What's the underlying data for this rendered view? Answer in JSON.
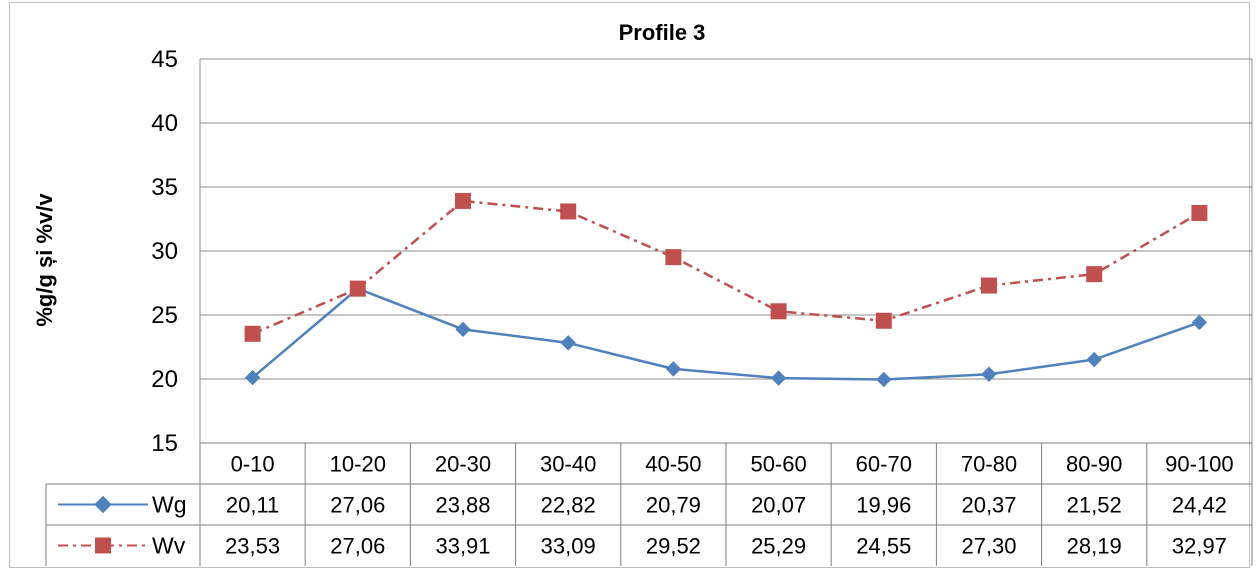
{
  "chart_data": {
    "type": "line",
    "title": "Profile 3",
    "xlabel": "",
    "ylabel": "%g/g și %v/v",
    "ylim": [
      15,
      45
    ],
    "yticks": [
      15,
      20,
      25,
      30,
      35,
      40,
      45
    ],
    "grid": true,
    "legend": "data-table",
    "categories": [
      "0-10",
      "10-20",
      "20-30",
      "30-40",
      "40-50",
      "50-60",
      "60-70",
      "70-80",
      "80-90",
      "90-100"
    ],
    "series": [
      {
        "name": "Wg",
        "values": [
          20.11,
          27.06,
          23.88,
          22.82,
          20.79,
          20.07,
          19.96,
          20.37,
          21.52,
          24.42
        ],
        "labels": [
          "20,11",
          "27,06",
          "23,88",
          "22,82",
          "20,79",
          "20,07",
          "19,96",
          "20,37",
          "21,52",
          "24,42"
        ],
        "color": "#4f81bd",
        "line_style": "solid",
        "marker": "diamond"
      },
      {
        "name": "Wv",
        "values": [
          23.53,
          27.06,
          33.91,
          33.09,
          29.52,
          25.29,
          24.55,
          27.3,
          28.19,
          32.97
        ],
        "labels": [
          "23,53",
          "27,06",
          "33,91",
          "33,09",
          "29,52",
          "25,29",
          "24,55",
          "27,30",
          "28,19",
          "32,97"
        ],
        "color": "#c0504d",
        "line_style": "dash-dot",
        "marker": "square"
      }
    ]
  },
  "colors": {
    "grid": "#8c8c8c",
    "table_border": "#7f7f7f",
    "frame": "#bfbfbf"
  }
}
